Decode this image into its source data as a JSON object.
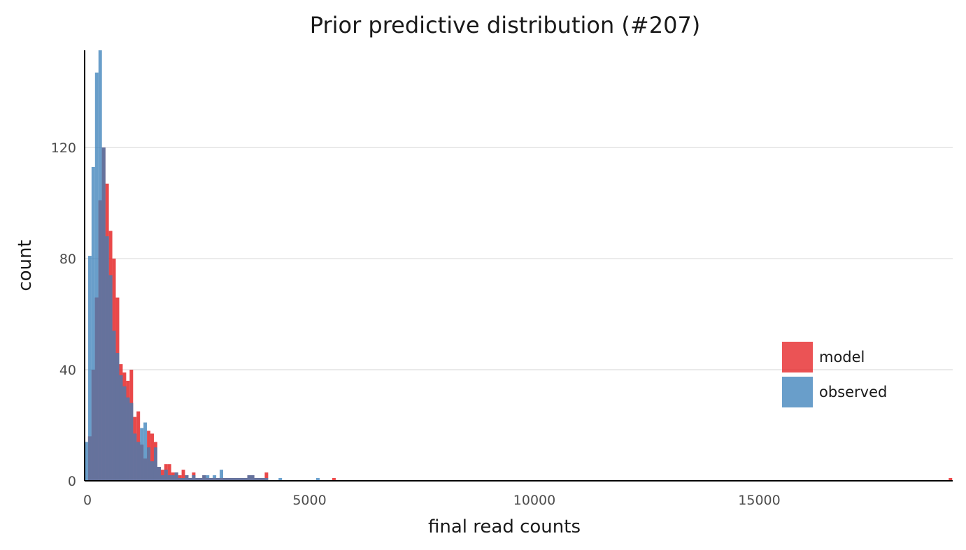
{
  "chart_data": {
    "type": "bar",
    "title": "Prior predictive distribution (#207)",
    "xlabel": "final read counts",
    "ylabel": "count",
    "xlim": [
      0,
      19300
    ],
    "ylim": [
      0,
      155
    ],
    "xticks": [
      0,
      5000,
      10000,
      15000
    ],
    "xtick_labels": [
      "0",
      "5000",
      "10000",
      "15000"
    ],
    "yticks": [
      0,
      40,
      80,
      120
    ],
    "ytick_labels": [
      "0",
      "40",
      "80",
      "120"
    ],
    "bin_width": 77,
    "grid": "horizontal",
    "legend_position": "right",
    "colors": {
      "model": "#e41a1c",
      "observed": "#377eb8",
      "overlap": "#65729c"
    },
    "series": [
      {
        "name": "model",
        "color": "#e41a1c",
        "x": [
          38,
          115,
          192,
          269,
          346,
          423,
          500,
          577,
          654,
          731,
          808,
          885,
          962,
          1039,
          1116,
          1193,
          1270,
          1347,
          1424,
          1501,
          1578,
          1655,
          1732,
          1809,
          1886,
          1963,
          2040,
          2117,
          2194,
          2271,
          2348,
          2425,
          2502,
          2579,
          2656,
          2733,
          2810,
          2887,
          2964,
          3041,
          3118,
          3195,
          3272,
          3349,
          3426,
          3503,
          3580,
          3657,
          3734,
          3811,
          3888,
          3965,
          4042,
          5544,
          19250
        ],
        "y": [
          0,
          16,
          40,
          66,
          101,
          120,
          107,
          90,
          80,
          66,
          42,
          39,
          36,
          40,
          23,
          25,
          13,
          8,
          18,
          17,
          14,
          5,
          4,
          6,
          6,
          3,
          3,
          2,
          4,
          2,
          1,
          3,
          1,
          1,
          2,
          1,
          1,
          1,
          1,
          1,
          1,
          1,
          1,
          1,
          1,
          1,
          1,
          2,
          2,
          1,
          1,
          1,
          3,
          1,
          1
        ]
      },
      {
        "name": "observed",
        "color": "#377eb8",
        "x": [
          38,
          115,
          192,
          269,
          346,
          423,
          500,
          577,
          654,
          731,
          808,
          885,
          962,
          1039,
          1116,
          1193,
          1270,
          1347,
          1424,
          1501,
          1578,
          1655,
          1732,
          1809,
          1886,
          1963,
          2040,
          2117,
          2194,
          2271,
          2348,
          2425,
          2502,
          2579,
          2656,
          2733,
          2810,
          2887,
          2964,
          3041,
          3118,
          3195,
          3272,
          3349,
          3426,
          3503,
          3580,
          3657,
          3734,
          3811,
          3888,
          3965,
          4042,
          4350,
          5186
        ],
        "y": [
          14,
          81,
          113,
          147,
          155,
          120,
          88,
          74,
          54,
          46,
          38,
          34,
          30,
          28,
          17,
          14,
          19,
          21,
          12,
          7,
          12,
          5,
          2,
          4,
          2,
          2,
          3,
          1,
          1,
          2,
          1,
          2,
          1,
          1,
          2,
          2,
          1,
          2,
          1,
          4,
          1,
          1,
          1,
          1,
          1,
          1,
          1,
          2,
          2,
          1,
          1,
          1,
          1,
          1,
          1
        ]
      }
    ]
  }
}
